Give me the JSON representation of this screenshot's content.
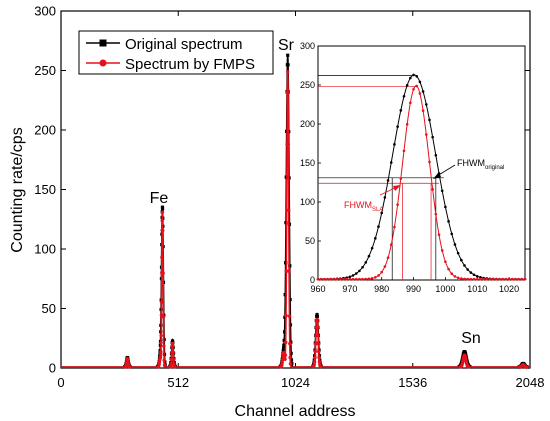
{
  "chart_data": [
    {
      "type": "line",
      "xlabel": "Channel address",
      "ylabel": "Counting rate/cps",
      "xlim": [
        0,
        2048
      ],
      "ylim": [
        0,
        300
      ],
      "xticks": [
        0,
        512,
        1024,
        1536,
        2048
      ],
      "yticks": [
        0,
        50,
        100,
        150,
        200,
        250,
        300
      ],
      "legend_position": "top-left",
      "series": [
        {
          "name": "Original spectrum",
          "color": "#000000",
          "marker": "square",
          "peaks": [
            {
              "center": 290,
              "height": 8,
              "width": 4
            },
            {
              "center": 433,
              "height": 8,
              "width": 4
            },
            {
              "center": 443,
              "height": 134,
              "width": 4
            },
            {
              "center": 487,
              "height": 22,
              "width": 4
            },
            {
              "center": 972,
              "height": 13,
              "width": 5
            },
            {
              "center": 990,
              "height": 262,
              "width": 6
            },
            {
              "center": 1118,
              "height": 44,
              "width": 6
            },
            {
              "center": 1762,
              "height": 13,
              "width": 8
            },
            {
              "center": 2018,
              "height": 3,
              "width": 6
            }
          ]
        },
        {
          "name": "Spectrum by FMPS",
          "color": "#e8101a",
          "marker": "circle",
          "peaks": [
            {
              "center": 290,
              "height": 7,
              "width": 3
            },
            {
              "center": 433,
              "height": 7,
              "width": 3
            },
            {
              "center": 443,
              "height": 130,
              "width": 3
            },
            {
              "center": 487,
              "height": 20,
              "width": 3
            },
            {
              "center": 972,
              "height": 12,
              "width": 4
            },
            {
              "center": 990,
              "height": 248,
              "width": 4
            },
            {
              "center": 1118,
              "height": 40,
              "width": 5
            },
            {
              "center": 1762,
              "height": 10,
              "width": 6
            },
            {
              "center": 2018,
              "height": 2,
              "width": 5
            }
          ]
        }
      ],
      "annotations": [
        "Fe",
        "Sr",
        "Sn"
      ]
    },
    {
      "type": "line",
      "inset": true,
      "xlim": [
        960,
        1025
      ],
      "ylim": [
        0,
        300
      ],
      "xticks": [
        960,
        970,
        980,
        990,
        1000,
        1010,
        1020
      ],
      "yticks": [
        0,
        50,
        100,
        150,
        200,
        250,
        300
      ],
      "series": [
        {
          "name": "Original spectrum",
          "color": "#000000",
          "center": 990.2,
          "height": 262,
          "width": 6.8
        },
        {
          "name": "Spectrum by FMPS",
          "color": "#e8101a",
          "center": 990.8,
          "height": 248,
          "width": 4.2
        }
      ],
      "guides": {
        "black_half_level": 131,
        "black_left": 983.3,
        "black_right": 997.0,
        "red_half_level": 124,
        "red_left": 986.5,
        "red_right": 995.5,
        "black_peak_level": 262,
        "red_peak_level": 248
      },
      "labels": {
        "fwhm_original_main": "FHWM",
        "fwhm_original_sub": "original",
        "fwhm_sla_main": "FHWM",
        "fwhm_sla_sub": "SLA"
      }
    }
  ],
  "labels": {
    "fe": "Fe",
    "sr": "Sr",
    "sn": "Sn"
  }
}
